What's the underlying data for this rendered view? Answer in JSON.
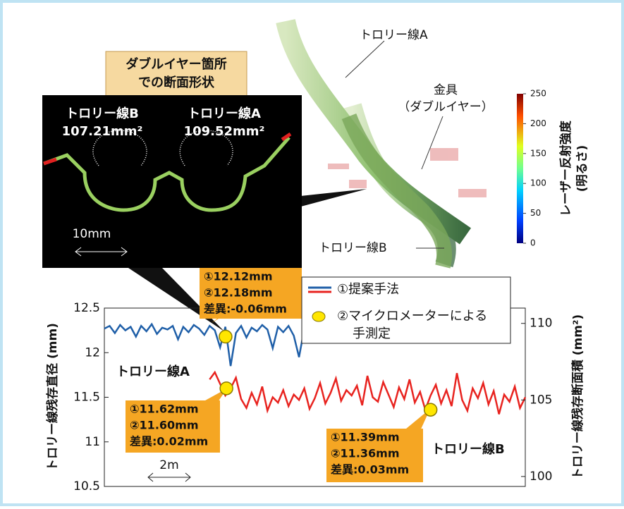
{
  "header": {
    "callout": [
      "ダブルイヤー箇所",
      "での断面形状"
    ]
  },
  "render": {
    "labels": {
      "trolley_a": "トロリー線A",
      "fitting": [
        "金具",
        "（ダブルイヤー）"
      ],
      "trolley_b": "トロリー線B"
    },
    "colorbar": {
      "label": [
        "レーザー反射強度",
        "(明るさ)"
      ],
      "lim": [
        0,
        250
      ],
      "ticks": [
        0,
        50,
        100,
        150,
        200,
        250
      ]
    }
  },
  "cross_section": {
    "wires": [
      {
        "name": "トロリー線B",
        "area": "107.21mm²"
      },
      {
        "name": "トロリー線A",
        "area": "109.52mm²"
      }
    ],
    "scale": "10mm"
  },
  "chart_data": {
    "type": "line",
    "ylabel": "トロリー線残存直径 (mm)",
    "y2label": "トロリー線残存断面積 (mm²)",
    "xlim": [
      0,
      20
    ],
    "ylim": [
      10.5,
      12.5
    ],
    "yticks": [
      10.5,
      11,
      11.5,
      12,
      12.5
    ],
    "y2lim": [
      99.35,
      111.0
    ],
    "y2ticks": [
      100,
      105,
      110
    ],
    "scale_bar": "2m",
    "legend_line": "①提案手法",
    "series": [
      {
        "name": "トロリー線A",
        "color": "#1f5fa8",
        "x": [
          0,
          0.25,
          0.5,
          0.75,
          1,
          1.25,
          1.5,
          1.75,
          2,
          2.25,
          2.5,
          2.75,
          3,
          3.25,
          3.5,
          3.75,
          4,
          4.25,
          4.5,
          4.75,
          5,
          5.25,
          5.5,
          5.75,
          6,
          6.25,
          6.5,
          6.75,
          7,
          7.25,
          7.5,
          7.75,
          8,
          8.25,
          8.5,
          8.75,
          9,
          9.25,
          9.5
        ],
        "values": [
          12.27,
          12.3,
          12.22,
          12.31,
          12.25,
          12.29,
          12.18,
          12.3,
          12.24,
          12.32,
          12.21,
          12.28,
          12.26,
          12.3,
          12.15,
          12.29,
          12.23,
          12.31,
          12.27,
          12.2,
          12.3,
          12.25,
          12.06,
          12.29,
          11.85,
          12.22,
          12.3,
          12.17,
          12.28,
          12.24,
          12.31,
          12.26,
          12.05,
          12.29,
          12.23,
          12.3,
          12.19,
          11.95,
          12.27
        ]
      },
      {
        "name": "トロリー線B",
        "color": "#e8231f",
        "x": [
          5,
          5.25,
          5.5,
          5.75,
          6,
          6.25,
          6.5,
          6.75,
          7,
          7.25,
          7.5,
          7.75,
          8,
          8.25,
          8.5,
          8.75,
          9,
          9.25,
          9.5,
          9.75,
          10,
          10.25,
          10.5,
          10.75,
          11,
          11.25,
          11.5,
          11.75,
          12,
          12.25,
          12.5,
          12.75,
          13,
          13.25,
          13.5,
          13.75,
          14,
          14.25,
          14.5,
          14.75,
          15,
          15.25,
          15.5,
          15.75,
          16,
          16.25,
          16.5,
          16.75,
          17,
          17.25,
          17.5,
          17.75,
          18,
          18.25,
          18.5,
          18.75,
          19,
          19.25,
          19.5,
          19.75,
          20
        ],
        "values": [
          11.7,
          11.78,
          11.65,
          11.52,
          11.6,
          11.72,
          11.48,
          11.38,
          11.55,
          11.42,
          11.62,
          11.35,
          11.5,
          11.44,
          11.58,
          11.4,
          11.53,
          11.47,
          11.6,
          11.37,
          11.49,
          11.66,
          11.43,
          11.55,
          11.71,
          11.46,
          11.58,
          11.52,
          11.63,
          11.41,
          11.74,
          11.5,
          11.45,
          11.67,
          11.53,
          11.39,
          11.61,
          11.48,
          11.7,
          11.44,
          11.56,
          11.36,
          11.52,
          11.64,
          11.43,
          11.58,
          11.4,
          11.77,
          11.47,
          11.35,
          11.6,
          11.49,
          11.66,
          11.42,
          11.57,
          11.31,
          11.53,
          11.45,
          11.62,
          11.38,
          11.5
        ]
      }
    ],
    "markers": {
      "name": [
        "②マイクロメーターによる",
        "手測定"
      ],
      "color": "#ffe600",
      "x": [
        5.76,
        5.8,
        15.5
      ],
      "values": [
        12.18,
        11.6,
        11.36
      ]
    },
    "annotations": [
      [
        "①12.12mm",
        "②12.18mm",
        "差異:-0.06mm"
      ],
      [
        "①11.62mm",
        "②11.60mm",
        "差異:0.02mm"
      ],
      [
        "①11.39mm",
        "②11.36mm",
        "差異:0.03mm"
      ]
    ]
  }
}
